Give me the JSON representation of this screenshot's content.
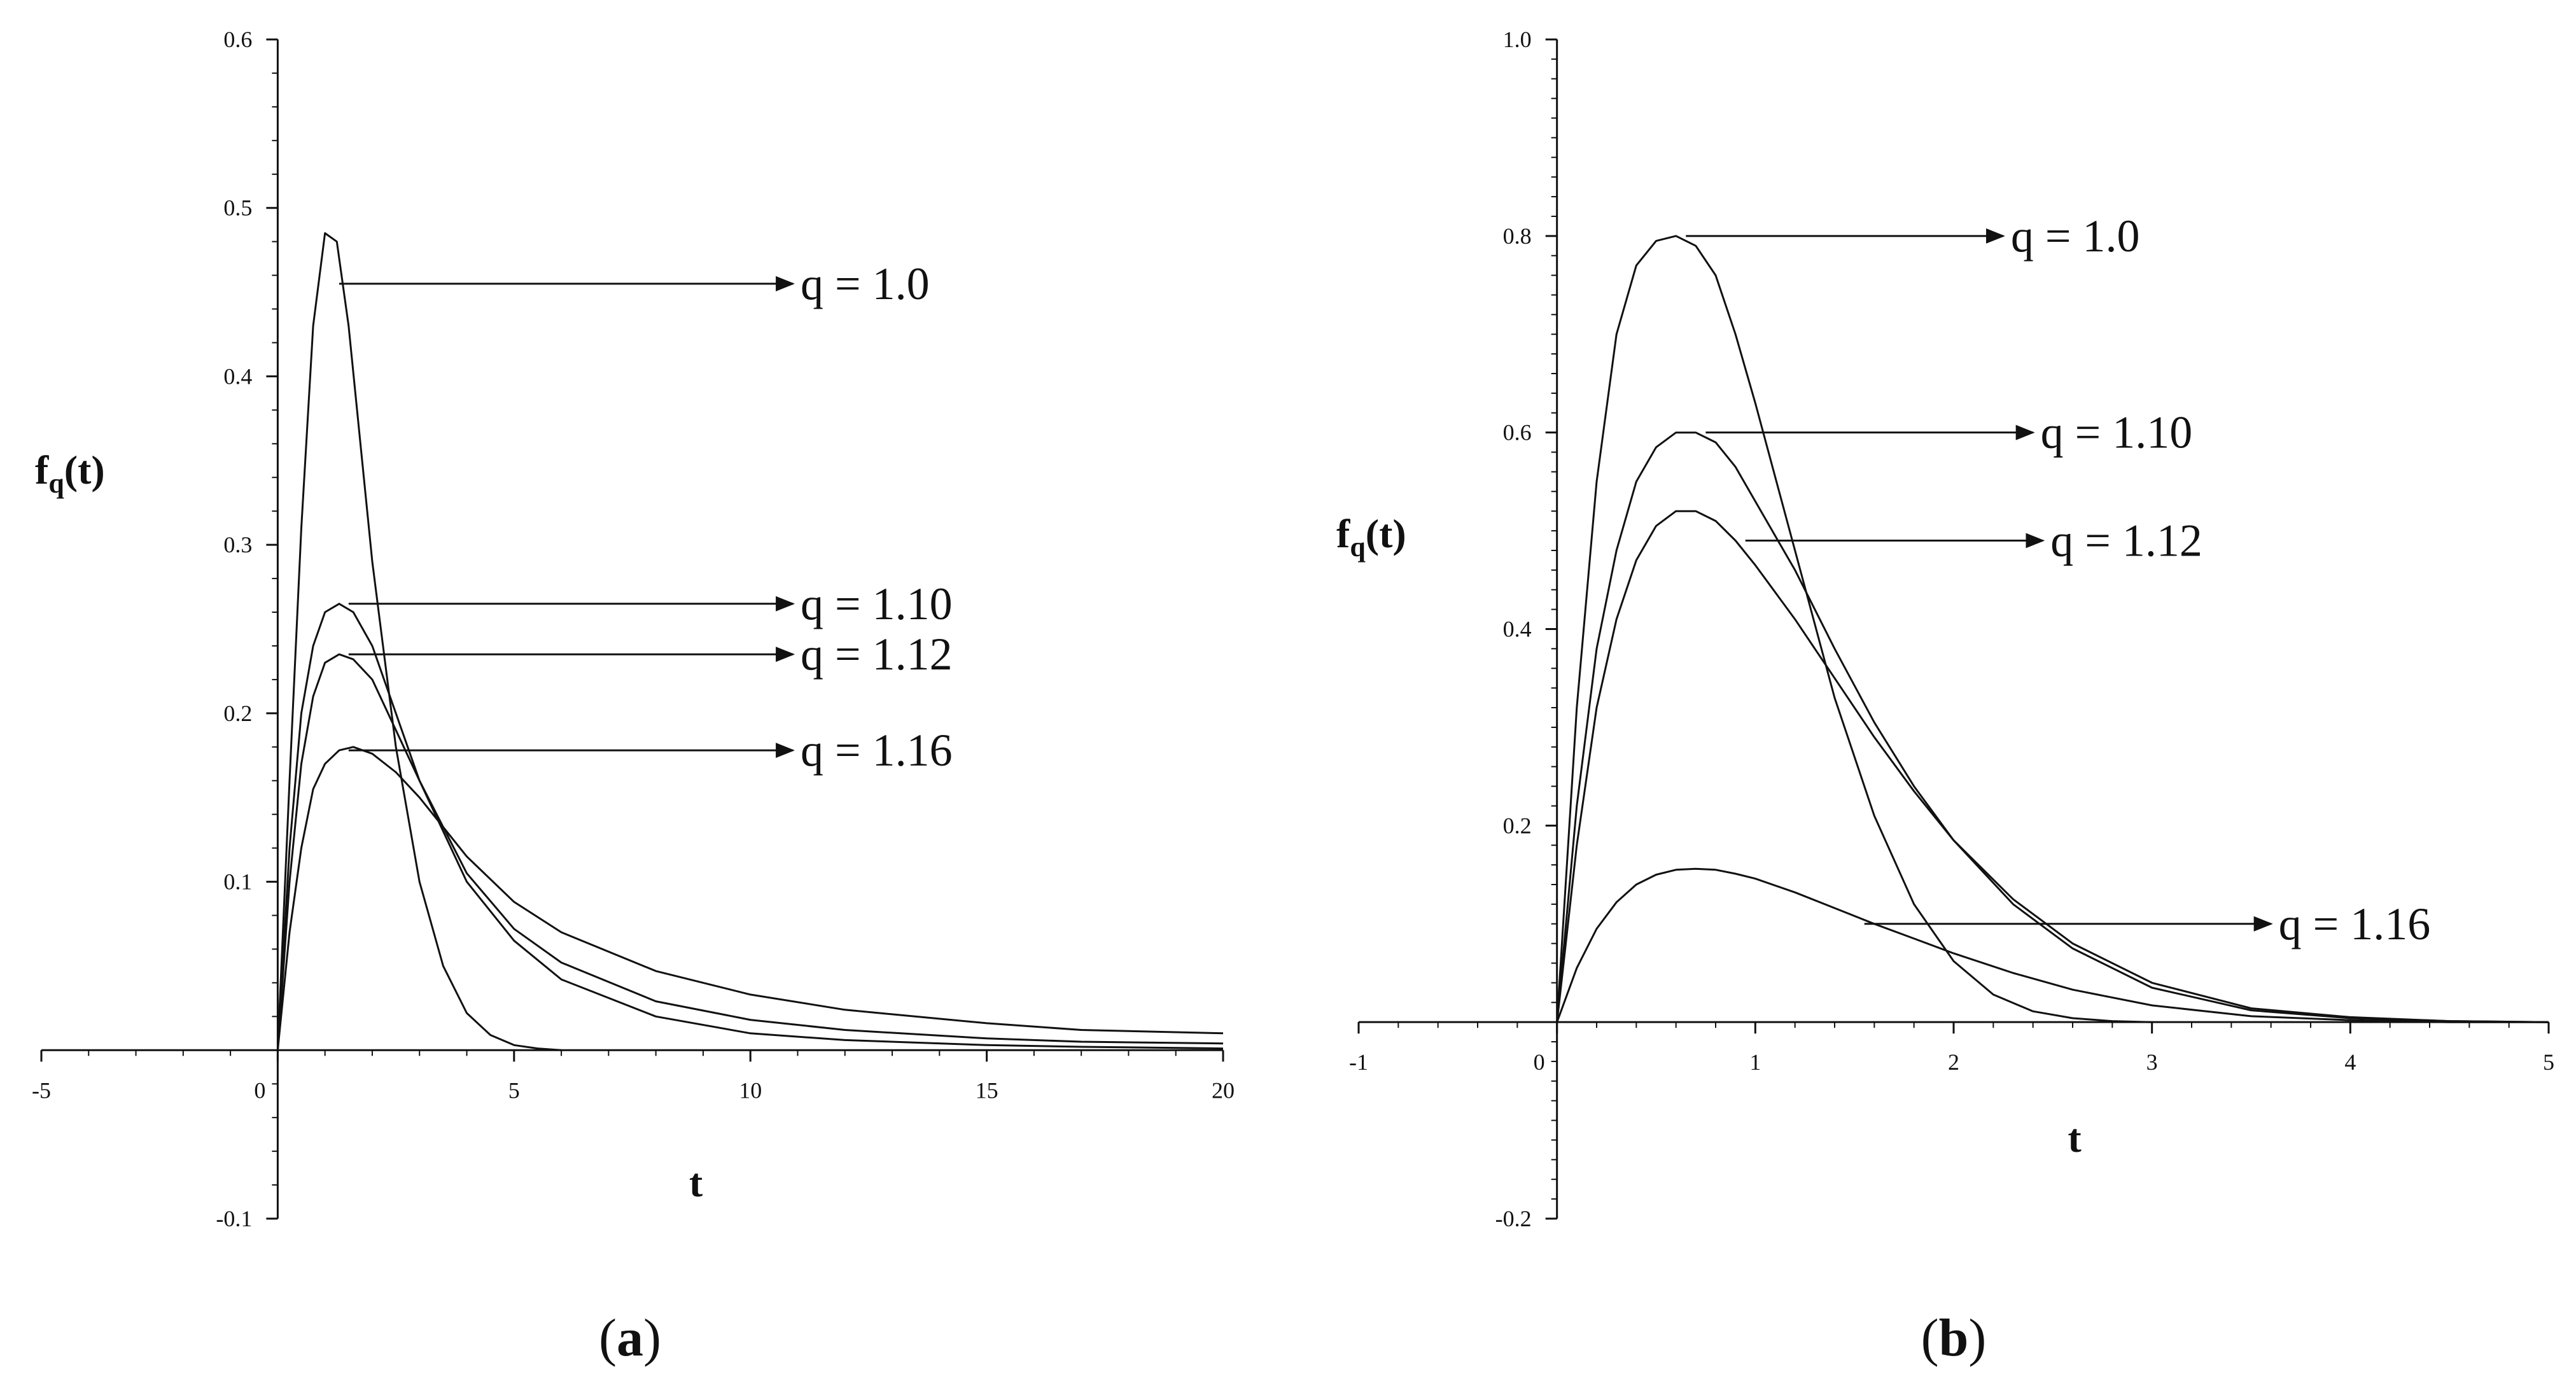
{
  "chart_data": [
    {
      "panel": "a",
      "type": "line",
      "caption_open": "(",
      "caption_letter": "a",
      "caption_close": ")",
      "xlabel": "t",
      "ylabel": "f",
      "ylabel_sub": "q",
      "ylabel_arg": "(t)",
      "xlim": [
        -5,
        20
      ],
      "ylim": [
        -0.1,
        0.6
      ],
      "xticks": [
        -5,
        0,
        5,
        10,
        15,
        20
      ],
      "yticks": [
        -0.1,
        0.1,
        0.2,
        0.3,
        0.4,
        0.5,
        0.6
      ],
      "series": [
        {
          "name": "q = 1.0",
          "x": [
            0,
            0.25,
            0.5,
            0.75,
            1.0,
            1.25,
            1.5,
            1.75,
            2.0,
            2.5,
            3.0,
            3.5,
            4.0,
            4.5,
            5.0,
            5.5,
            6.0
          ],
          "y": [
            0,
            0.16,
            0.31,
            0.43,
            0.485,
            0.48,
            0.43,
            0.36,
            0.29,
            0.18,
            0.1,
            0.05,
            0.022,
            0.009,
            0.003,
            0.001,
            0.0
          ]
        },
        {
          "name": "q = 1.10",
          "x": [
            0,
            0.25,
            0.5,
            0.75,
            1.0,
            1.3,
            1.6,
            2.0,
            2.5,
            3.0,
            4.0,
            5.0,
            6.0,
            8.0,
            10.0,
            12.0,
            15.0,
            17.0,
            20.0
          ],
          "y": [
            0,
            0.12,
            0.2,
            0.24,
            0.26,
            0.265,
            0.26,
            0.24,
            0.2,
            0.16,
            0.1,
            0.065,
            0.042,
            0.02,
            0.01,
            0.006,
            0.003,
            0.002,
            0.001
          ]
        },
        {
          "name": "q = 1.12",
          "x": [
            0,
            0.25,
            0.5,
            0.75,
            1.0,
            1.3,
            1.6,
            2.0,
            2.5,
            3.0,
            4.0,
            5.0,
            6.0,
            8.0,
            10.0,
            12.0,
            15.0,
            17.0,
            20.0
          ],
          "y": [
            0,
            0.1,
            0.17,
            0.21,
            0.23,
            0.235,
            0.232,
            0.22,
            0.19,
            0.16,
            0.105,
            0.072,
            0.052,
            0.029,
            0.018,
            0.012,
            0.007,
            0.005,
            0.004
          ]
        },
        {
          "name": "q = 1.16",
          "x": [
            0,
            0.25,
            0.5,
            0.75,
            1.0,
            1.3,
            1.6,
            2.0,
            2.5,
            3.0,
            4.0,
            5.0,
            6.0,
            8.0,
            10.0,
            12.0,
            15.0,
            17.0,
            20.0
          ],
          "y": [
            0,
            0.07,
            0.12,
            0.155,
            0.17,
            0.178,
            0.18,
            0.176,
            0.165,
            0.15,
            0.115,
            0.088,
            0.07,
            0.047,
            0.033,
            0.024,
            0.016,
            0.012,
            0.01
          ]
        }
      ],
      "annotations": [
        {
          "text": "q = 1.0",
          "x": 1.3,
          "y": 0.455,
          "tx": 10.9
        },
        {
          "text": "q = 1.10",
          "x": 1.5,
          "y": 0.265,
          "tx": 10.9
        },
        {
          "text": "q = 1.12",
          "x": 1.5,
          "y": 0.235,
          "tx": 10.9
        },
        {
          "text": "q = 1.16",
          "x": 1.5,
          "y": 0.178,
          "tx": 10.9
        }
      ]
    },
    {
      "panel": "b",
      "type": "line",
      "caption_open": "(",
      "caption_letter": "b",
      "caption_close": ")",
      "xlabel": "t",
      "ylabel": "f",
      "ylabel_sub": "q",
      "ylabel_arg": "(t)",
      "xlim": [
        -1,
        5
      ],
      "ylim": [
        -0.2,
        1.0
      ],
      "xticks": [
        -1,
        0,
        1,
        2,
        3,
        4,
        5
      ],
      "yticks": [
        -0.2,
        0.2,
        0.4,
        0.6,
        0.8,
        1.0
      ],
      "series": [
        {
          "name": "q = 1.0",
          "x": [
            0,
            0.1,
            0.2,
            0.3,
            0.4,
            0.5,
            0.6,
            0.7,
            0.8,
            0.9,
            1.0,
            1.2,
            1.4,
            1.6,
            1.8,
            2.0,
            2.2,
            2.4,
            2.6,
            2.8,
            3.0
          ],
          "y": [
            0,
            0.32,
            0.55,
            0.7,
            0.77,
            0.795,
            0.8,
            0.79,
            0.76,
            0.7,
            0.63,
            0.48,
            0.33,
            0.21,
            0.12,
            0.062,
            0.028,
            0.011,
            0.004,
            0.001,
            0.0
          ]
        },
        {
          "name": "q = 1.10",
          "x": [
            0,
            0.1,
            0.2,
            0.3,
            0.4,
            0.5,
            0.6,
            0.7,
            0.8,
            0.9,
            1.0,
            1.2,
            1.4,
            1.6,
            1.8,
            2.0,
            2.3,
            2.6,
            3.0,
            3.5,
            4.0,
            4.5,
            5.0
          ],
          "y": [
            0,
            0.22,
            0.38,
            0.48,
            0.55,
            0.585,
            0.6,
            0.6,
            0.59,
            0.565,
            0.53,
            0.46,
            0.38,
            0.305,
            0.24,
            0.185,
            0.12,
            0.075,
            0.035,
            0.012,
            0.004,
            0.001,
            0.0
          ]
        },
        {
          "name": "q = 1.12",
          "x": [
            0,
            0.1,
            0.2,
            0.3,
            0.4,
            0.5,
            0.6,
            0.7,
            0.8,
            0.9,
            1.0,
            1.2,
            1.4,
            1.6,
            1.8,
            2.0,
            2.3,
            2.6,
            3.0,
            3.5,
            4.0,
            4.5,
            5.0
          ],
          "y": [
            0,
            0.18,
            0.32,
            0.41,
            0.47,
            0.505,
            0.52,
            0.52,
            0.51,
            0.49,
            0.465,
            0.41,
            0.35,
            0.29,
            0.235,
            0.185,
            0.125,
            0.08,
            0.04,
            0.014,
            0.005,
            0.001,
            0.0
          ]
        },
        {
          "name": "q = 1.16",
          "x": [
            0,
            0.1,
            0.2,
            0.3,
            0.4,
            0.5,
            0.6,
            0.7,
            0.8,
            0.9,
            1.0,
            1.2,
            1.4,
            1.6,
            1.8,
            2.0,
            2.3,
            2.6,
            3.0,
            3.5,
            4.0,
            4.5,
            5.0
          ],
          "y": [
            0,
            0.055,
            0.095,
            0.122,
            0.14,
            0.15,
            0.155,
            0.156,
            0.155,
            0.151,
            0.146,
            0.132,
            0.116,
            0.1,
            0.085,
            0.07,
            0.05,
            0.033,
            0.017,
            0.006,
            0.002,
            0.0,
            0.0
          ]
        }
      ],
      "annotations": [
        {
          "text": "q = 1.0",
          "x": 0.65,
          "y": 0.8,
          "tx": 2.25
        },
        {
          "text": "q = 1.10",
          "x": 0.75,
          "y": 0.6,
          "tx": 2.4
        },
        {
          "text": "q = 1.12",
          "x": 0.95,
          "y": 0.49,
          "tx": 2.45
        },
        {
          "text": "q = 1.16",
          "x": 1.55,
          "y": 0.1,
          "tx": 3.6
        }
      ]
    }
  ]
}
